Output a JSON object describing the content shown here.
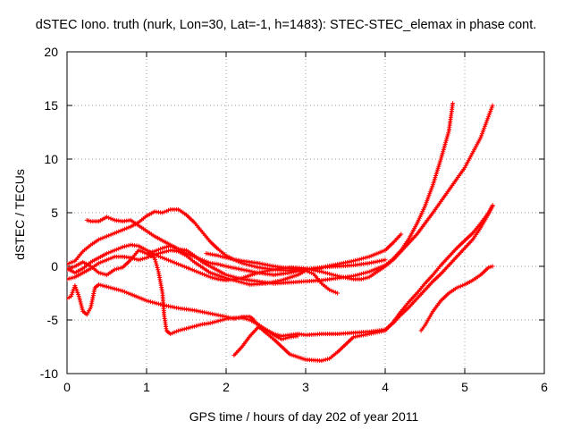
{
  "chart_data": {
    "type": "scatter",
    "title": "dSTEC Iono. truth (nurk, Lon=30, Lat=-1, h=1483): STEC-STEC_elemax in phase cont.",
    "xlabel": "GPS time / hours of day 202 of year 2011",
    "ylabel": "dSTEC  / TECUs",
    "xlim": [
      0,
      6
    ],
    "ylim": [
      -10,
      20
    ],
    "xticks": [
      "0",
      "1",
      "2",
      "3",
      "4",
      "5",
      "6"
    ],
    "yticks": [
      "-10",
      "-5",
      "0",
      "5",
      "10",
      "15",
      "20"
    ],
    "grid": true,
    "marker": "+",
    "color": "#ff0000",
    "series": [
      {
        "points": [
          [
            0.0,
            -0.3
          ],
          [
            0.1,
            0.0
          ],
          [
            0.2,
            0.4
          ],
          [
            0.3,
            0.0
          ],
          [
            0.4,
            -0.6
          ],
          [
            0.5,
            -0.8
          ],
          [
            0.6,
            -0.3
          ],
          [
            0.7,
            -0.1
          ],
          [
            0.8,
            0.6
          ],
          [
            0.9,
            1.5
          ],
          [
            1.0,
            1.2
          ],
          [
            1.1,
            1.4
          ],
          [
            1.2,
            1.7
          ],
          [
            1.3,
            1.9
          ],
          [
            1.4,
            1.6
          ],
          [
            1.5,
            1.5
          ],
          [
            1.6,
            1.0
          ],
          [
            1.7,
            0.4
          ],
          [
            1.8,
            0.0
          ],
          [
            1.9,
            -0.4
          ],
          [
            2.0,
            -0.8
          ],
          [
            2.2,
            -1.2
          ],
          [
            2.4,
            -1.4
          ],
          [
            2.6,
            -1.6
          ],
          [
            2.8,
            -1.5
          ],
          [
            3.0,
            -1.4
          ],
          [
            3.2,
            -1.3
          ],
          [
            3.4,
            -1.1
          ],
          [
            3.6,
            -0.9
          ],
          [
            3.8,
            -0.5
          ],
          [
            4.0,
            0.1
          ],
          [
            4.1,
            0.7
          ],
          [
            4.2,
            1.5
          ],
          [
            4.3,
            2.6
          ],
          [
            4.4,
            4.0
          ],
          [
            4.5,
            5.6
          ],
          [
            4.6,
            7.6
          ],
          [
            4.7,
            10.0
          ],
          [
            4.8,
            12.6
          ],
          [
            4.85,
            15.2
          ]
        ]
      },
      {
        "points": [
          [
            0.0,
            -3.0
          ],
          [
            0.05,
            -2.8
          ],
          [
            0.1,
            -1.8
          ],
          [
            0.15,
            -2.8
          ],
          [
            0.2,
            -4.2
          ],
          [
            0.25,
            -4.5
          ],
          [
            0.3,
            -3.8
          ],
          [
            0.35,
            -2.0
          ],
          [
            0.4,
            -1.7
          ],
          [
            0.5,
            -1.9
          ],
          [
            0.7,
            -2.3
          ],
          [
            0.8,
            -2.6
          ],
          [
            1.0,
            -3.2
          ],
          [
            1.2,
            -3.6
          ],
          [
            1.4,
            -3.9
          ],
          [
            1.6,
            -4.1
          ],
          [
            1.8,
            -4.4
          ],
          [
            2.0,
            -4.7
          ],
          [
            2.1,
            -4.9
          ],
          [
            2.2,
            -4.7
          ],
          [
            2.3,
            -4.7
          ],
          [
            2.35,
            -5.0
          ],
          [
            2.4,
            -5.5
          ],
          [
            2.5,
            -6.2
          ],
          [
            2.6,
            -6.8
          ],
          [
            2.7,
            -7.5
          ],
          [
            2.8,
            -8.2
          ],
          [
            3.0,
            -8.7
          ],
          [
            3.2,
            -8.8
          ],
          [
            3.3,
            -8.6
          ],
          [
            3.4,
            -8.0
          ],
          [
            3.5,
            -7.3
          ],
          [
            3.6,
            -6.6
          ],
          [
            3.8,
            -6.3
          ],
          [
            4.0,
            -6.0
          ],
          [
            4.1,
            -5.2
          ],
          [
            4.2,
            -4.2
          ],
          [
            4.3,
            -3.3
          ],
          [
            4.4,
            -2.5
          ],
          [
            4.5,
            -1.6
          ],
          [
            4.6,
            -0.8
          ],
          [
            4.7,
            0.1
          ],
          [
            4.8,
            0.9
          ],
          [
            4.9,
            1.7
          ],
          [
            5.0,
            2.4
          ],
          [
            5.1,
            3.1
          ],
          [
            5.2,
            4.0
          ],
          [
            5.3,
            5.0
          ],
          [
            5.35,
            5.7
          ]
        ]
      },
      {
        "points": [
          [
            0.0,
            -0.2
          ],
          [
            0.1,
            -0.6
          ],
          [
            0.2,
            -0.2
          ],
          [
            0.3,
            0.4
          ],
          [
            0.4,
            0.8
          ],
          [
            0.5,
            1.2
          ],
          [
            0.6,
            1.5
          ],
          [
            0.7,
            1.8
          ],
          [
            0.8,
            2.0
          ],
          [
            0.9,
            1.9
          ],
          [
            1.0,
            1.5
          ],
          [
            1.1,
            1.1
          ],
          [
            1.2,
            0.8
          ],
          [
            1.3,
            0.5
          ],
          [
            1.4,
            0.2
          ],
          [
            1.5,
            -0.1
          ],
          [
            1.6,
            -0.4
          ],
          [
            1.7,
            -0.7
          ],
          [
            1.8,
            -1.0
          ],
          [
            1.9,
            -1.2
          ],
          [
            2.0,
            -1.3
          ],
          [
            2.2,
            -1.1
          ],
          [
            2.4,
            -0.6
          ],
          [
            2.6,
            -0.3
          ],
          [
            2.8,
            -0.1
          ],
          [
            3.0,
            -0.2
          ],
          [
            3.2,
            -0.5
          ],
          [
            3.4,
            -0.9
          ],
          [
            3.6,
            -1.2
          ],
          [
            3.7,
            -1.2
          ],
          [
            3.8,
            -1.0
          ],
          [
            3.9,
            -0.5
          ],
          [
            4.0,
            0.0
          ],
          [
            4.1,
            0.6
          ],
          [
            4.2,
            1.4
          ],
          [
            4.4,
            3.0
          ],
          [
            4.6,
            5.0
          ],
          [
            4.8,
            7.1
          ],
          [
            5.0,
            9.2
          ],
          [
            5.2,
            12.0
          ],
          [
            5.35,
            15.0
          ]
        ]
      },
      {
        "points": [
          [
            0.0,
            -1.2
          ],
          [
            0.1,
            -1.0
          ],
          [
            0.2,
            -0.6
          ],
          [
            0.3,
            -0.2
          ],
          [
            0.4,
            0.3
          ],
          [
            0.5,
            0.6
          ],
          [
            0.6,
            0.9
          ],
          [
            0.7,
            0.9
          ],
          [
            0.8,
            0.8
          ],
          [
            0.9,
            0.6
          ],
          [
            1.0,
            0.8
          ],
          [
            1.1,
            1.1
          ],
          [
            1.2,
            1.3
          ],
          [
            1.3,
            1.5
          ],
          [
            1.4,
            1.4
          ],
          [
            1.5,
            1.0
          ],
          [
            1.6,
            0.4
          ],
          [
            1.7,
            -0.1
          ],
          [
            1.8,
            -0.6
          ],
          [
            2.0,
            -1.1
          ],
          [
            2.1,
            -1.3
          ],
          [
            2.2,
            -1.5
          ],
          [
            2.3,
            -1.7
          ],
          [
            2.5,
            -1.6
          ],
          [
            2.7,
            -1.3
          ],
          [
            2.9,
            -0.8
          ],
          [
            3.0,
            -0.4
          ],
          [
            3.1,
            -0.7
          ],
          [
            3.2,
            -1.6
          ],
          [
            3.3,
            -2.2
          ],
          [
            3.4,
            -2.5
          ]
        ]
      },
      {
        "points": [
          [
            1.0,
            1.2
          ],
          [
            1.1,
            0.8
          ],
          [
            1.15,
            -0.5
          ],
          [
            1.2,
            -2.5
          ],
          [
            1.22,
            -4.5
          ],
          [
            1.25,
            -6.0
          ],
          [
            1.3,
            -6.3
          ],
          [
            1.4,
            -6.0
          ],
          [
            1.5,
            -5.8
          ],
          [
            1.6,
            -5.6
          ],
          [
            1.7,
            -5.4
          ],
          [
            1.8,
            -5.3
          ],
          [
            1.9,
            -5.1
          ],
          [
            2.0,
            -4.9
          ],
          [
            2.1,
            -4.8
          ],
          [
            2.2,
            -4.8
          ],
          [
            2.3,
            -5.0
          ],
          [
            2.4,
            -5.4
          ],
          [
            2.5,
            -5.9
          ],
          [
            2.6,
            -6.3
          ],
          [
            2.7,
            -6.5
          ],
          [
            2.8,
            -6.4
          ],
          [
            2.9,
            -6.3
          ],
          [
            3.0,
            -6.4
          ],
          [
            3.2,
            -6.3
          ],
          [
            3.4,
            -6.3
          ],
          [
            3.6,
            -6.2
          ],
          [
            3.8,
            -6.1
          ],
          [
            4.0,
            -5.9
          ],
          [
            4.1,
            -5.3
          ],
          [
            4.2,
            -4.5
          ],
          [
            4.3,
            -3.8
          ],
          [
            4.4,
            -3.0
          ],
          [
            4.5,
            -2.2
          ],
          [
            4.6,
            -1.4
          ],
          [
            4.7,
            -0.7
          ],
          [
            4.8,
            0.1
          ],
          [
            4.9,
            0.9
          ],
          [
            5.0,
            1.7
          ],
          [
            5.1,
            2.5
          ],
          [
            5.2,
            3.6
          ],
          [
            5.3,
            4.9
          ],
          [
            5.35,
            5.6
          ]
        ]
      },
      {
        "points": [
          [
            0.25,
            4.3
          ],
          [
            0.3,
            4.2
          ],
          [
            0.4,
            4.2
          ],
          [
            0.5,
            4.6
          ],
          [
            0.6,
            4.3
          ],
          [
            0.7,
            4.2
          ],
          [
            0.8,
            4.3
          ],
          [
            0.9,
            3.8
          ],
          [
            1.0,
            3.3
          ],
          [
            1.1,
            2.8
          ],
          [
            1.2,
            2.4
          ],
          [
            1.3,
            2.0
          ],
          [
            1.4,
            1.6
          ],
          [
            1.5,
            1.2
          ],
          [
            1.6,
            0.9
          ],
          [
            1.7,
            0.6
          ],
          [
            1.8,
            0.3
          ],
          [
            1.9,
            0.2
          ],
          [
            2.0,
            0.0
          ],
          [
            2.2,
            -0.3
          ],
          [
            2.4,
            -0.6
          ],
          [
            2.6,
            -0.8
          ],
          [
            2.8,
            -0.6
          ],
          [
            3.0,
            -0.3
          ],
          [
            3.2,
            -0.1
          ],
          [
            3.4,
            0.2
          ],
          [
            3.6,
            0.5
          ],
          [
            3.8,
            0.9
          ],
          [
            4.0,
            1.5
          ],
          [
            4.1,
            2.2
          ],
          [
            4.2,
            3.0
          ]
        ]
      },
      {
        "points": [
          [
            0.0,
            0.2
          ],
          [
            0.1,
            0.5
          ],
          [
            0.2,
            1.4
          ],
          [
            0.3,
            2.0
          ],
          [
            0.4,
            2.5
          ],
          [
            0.5,
            2.8
          ],
          [
            0.6,
            3.1
          ],
          [
            0.7,
            3.4
          ],
          [
            0.8,
            3.7
          ],
          [
            0.9,
            4.1
          ],
          [
            1.0,
            4.7
          ],
          [
            1.1,
            5.1
          ],
          [
            1.2,
            5.0
          ],
          [
            1.3,
            5.3
          ],
          [
            1.4,
            5.3
          ],
          [
            1.5,
            4.8
          ],
          [
            1.6,
            4.1
          ],
          [
            1.7,
            3.2
          ],
          [
            1.8,
            2.3
          ],
          [
            1.9,
            1.6
          ],
          [
            2.0,
            1.0
          ],
          [
            2.1,
            0.6
          ],
          [
            2.2,
            0.3
          ],
          [
            2.4,
            -0.1
          ],
          [
            2.6,
            -0.3
          ],
          [
            2.8,
            -0.4
          ],
          [
            3.0,
            -0.3
          ],
          [
            3.2,
            -0.1
          ],
          [
            3.4,
            0.0
          ],
          [
            3.6,
            0.1
          ],
          [
            3.8,
            0.3
          ],
          [
            4.0,
            0.6
          ]
        ]
      },
      {
        "points": [
          [
            1.75,
            1.2
          ],
          [
            1.9,
            1.0
          ],
          [
            2.0,
            0.8
          ],
          [
            2.2,
            0.5
          ],
          [
            2.4,
            0.3
          ],
          [
            2.6,
            0.0
          ],
          [
            2.8,
            -0.2
          ],
          [
            3.0,
            -0.3
          ],
          [
            3.2,
            -0.2
          ]
        ]
      },
      {
        "points": [
          [
            2.1,
            -8.3
          ],
          [
            2.2,
            -7.5
          ],
          [
            2.3,
            -6.5
          ],
          [
            2.4,
            -5.7
          ],
          [
            2.5,
            -5.9
          ],
          [
            2.6,
            -6.4
          ],
          [
            2.7,
            -6.8
          ],
          [
            2.8,
            -6.6
          ],
          [
            2.9,
            -6.5
          ]
        ]
      },
      {
        "points": [
          [
            4.45,
            -6.0
          ],
          [
            4.5,
            -5.5
          ],
          [
            4.6,
            -4.2
          ],
          [
            4.7,
            -3.2
          ],
          [
            4.8,
            -2.5
          ],
          [
            4.9,
            -2.0
          ],
          [
            5.0,
            -1.7
          ],
          [
            5.1,
            -1.3
          ],
          [
            5.2,
            -0.8
          ],
          [
            5.3,
            -0.1
          ],
          [
            5.35,
            0.0
          ]
        ]
      }
    ]
  }
}
